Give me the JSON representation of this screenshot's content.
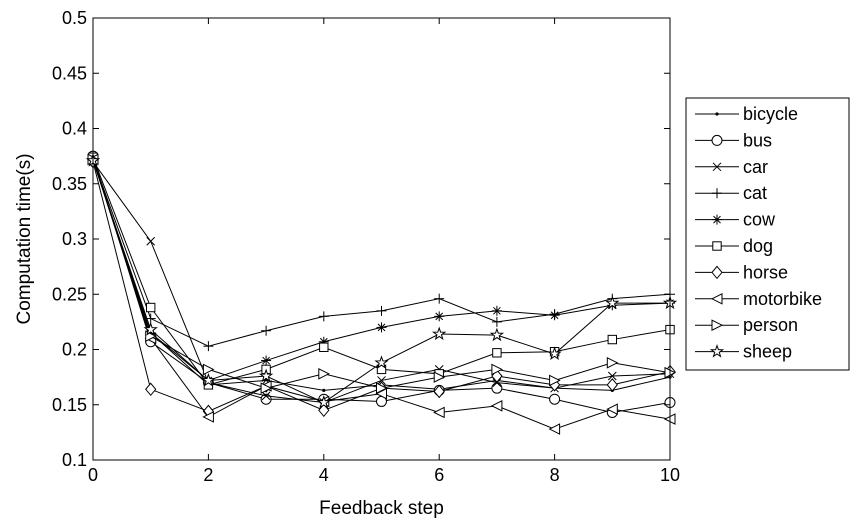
{
  "chart_data": {
    "type": "line",
    "xlabel": "Feedback step",
    "ylabel": "Computation time(s)",
    "xlim": [
      0,
      10
    ],
    "ylim": [
      0.1,
      0.5
    ],
    "xticks": [
      0,
      2,
      4,
      6,
      8,
      10
    ],
    "yticks": [
      0.1,
      0.15,
      0.2,
      0.25,
      0.3,
      0.35,
      0.4,
      0.45,
      0.5
    ],
    "ytick_labels": [
      "0.1",
      "0.15",
      "0.2",
      "0.25",
      "0.3",
      "0.35",
      "0.4",
      "0.45",
      "0.5"
    ],
    "grid": false,
    "legend_position": "outside-right",
    "line_color": "#000000",
    "x": [
      0,
      1,
      2,
      3,
      4,
      5,
      6,
      7,
      8,
      9,
      10
    ],
    "series": [
      {
        "name": "bicycle",
        "marker": "point",
        "values": [
          0.372,
          0.215,
          0.168,
          0.172,
          0.163,
          0.168,
          0.164,
          0.172,
          0.165,
          0.163,
          0.175
        ]
      },
      {
        "name": "bus",
        "marker": "circle",
        "values": [
          0.375,
          0.207,
          0.17,
          0.155,
          0.155,
          0.153,
          0.163,
          0.165,
          0.155,
          0.143,
          0.152
        ]
      },
      {
        "name": "car",
        "marker": "x",
        "values": [
          0.37,
          0.298,
          0.17,
          0.158,
          0.152,
          0.172,
          0.182,
          0.17,
          0.165,
          0.176,
          0.178
        ]
      },
      {
        "name": "cat",
        "marker": "plus",
        "values": [
          0.372,
          0.228,
          0.203,
          0.217,
          0.23,
          0.235,
          0.246,
          0.225,
          0.232,
          0.246,
          0.25
        ]
      },
      {
        "name": "cow",
        "marker": "asterisk",
        "values": [
          0.372,
          0.215,
          0.172,
          0.19,
          0.207,
          0.22,
          0.23,
          0.235,
          0.231,
          0.24,
          0.242
        ]
      },
      {
        "name": "dog",
        "marker": "square",
        "values": [
          0.374,
          0.238,
          0.168,
          0.182,
          0.202,
          0.182,
          0.178,
          0.197,
          0.198,
          0.209,
          0.218
        ]
      },
      {
        "name": "horse",
        "marker": "diamond",
        "values": [
          0.37,
          0.164,
          0.144,
          0.167,
          0.145,
          0.165,
          0.162,
          0.176,
          0.168,
          0.168,
          0.18
        ]
      },
      {
        "name": "motorbike",
        "marker": "triangle-left",
        "values": [
          0.372,
          0.21,
          0.139,
          0.167,
          0.153,
          0.16,
          0.143,
          0.149,
          0.128,
          0.146,
          0.137
        ]
      },
      {
        "name": "person",
        "marker": "triangle-right",
        "values": [
          0.372,
          0.212,
          0.182,
          0.165,
          0.178,
          0.165,
          0.175,
          0.182,
          0.172,
          0.188,
          0.179
        ]
      },
      {
        "name": "sheep",
        "marker": "star",
        "values": [
          0.371,
          0.218,
          0.172,
          0.176,
          0.152,
          0.188,
          0.214,
          0.213,
          0.196,
          0.242,
          0.242
        ]
      }
    ]
  }
}
